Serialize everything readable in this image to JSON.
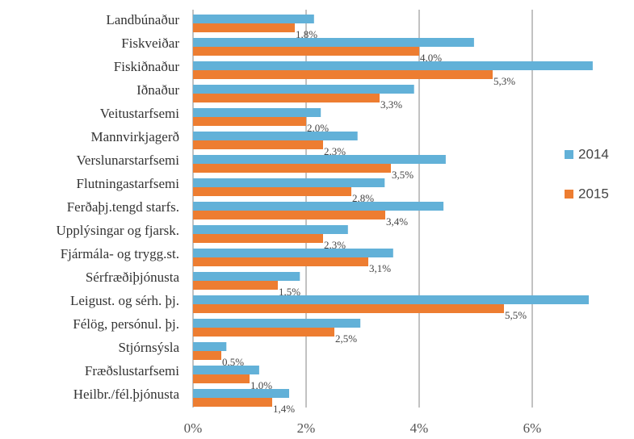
{
  "chart_data": {
    "type": "hbar",
    "categories": [
      "Landbúnaður",
      "Fiskveiðar",
      "Fiskiðnaður",
      "Iðnaður",
      "Veitustarfsemi",
      "Mannvirkjagerð",
      "Verslunarstarfsemi",
      "Flutningastarfsemi",
      "Ferðaþj.tengd starfs.",
      "Upplýsingar og fjarsk.",
      "Fjármála- og trygg.st.",
      "Sérfræðiþjónusta",
      "Leigust. og sérh. þj.",
      "Félög, persónul. þj.",
      "Stjórnsýsla",
      "Fræðslustarfsemi",
      "Heilbr./fél.þjónusta"
    ],
    "series": [
      {
        "name": "2014",
        "color": "#62b1d8",
        "values": [
          2.14,
          4.97,
          7.07,
          3.91,
          2.26,
          2.91,
          4.47,
          3.39,
          4.43,
          2.74,
          3.54,
          1.89,
          7.0,
          2.96,
          0.59,
          1.17,
          1.7
        ]
      },
      {
        "name": "2015",
        "color": "#ed7d31",
        "values": [
          1.8,
          4.0,
          5.3,
          3.3,
          2.0,
          2.3,
          3.5,
          2.8,
          3.4,
          2.3,
          3.1,
          1.5,
          5.5,
          2.5,
          0.5,
          1.0,
          1.4
        ],
        "value_labels": [
          "1,8%",
          "4,0%",
          "5,3%",
          "3,3%",
          "2,0%",
          "2,3%",
          "3,5%",
          "2,8%",
          "3,4%",
          "2,3%",
          "3,1%",
          "1,5%",
          "5,5%",
          "2,5%",
          "0,5%",
          "1,0%",
          "1,4%"
        ]
      }
    ],
    "xlim": [
      0,
      7.5
    ],
    "xticks": [
      {
        "value": 0,
        "label": "0%"
      },
      {
        "value": 2,
        "label": "2%"
      },
      {
        "value": 4,
        "label": "4%"
      },
      {
        "value": 6,
        "label": "6%"
      }
    ],
    "grid": true,
    "legend": "right"
  }
}
